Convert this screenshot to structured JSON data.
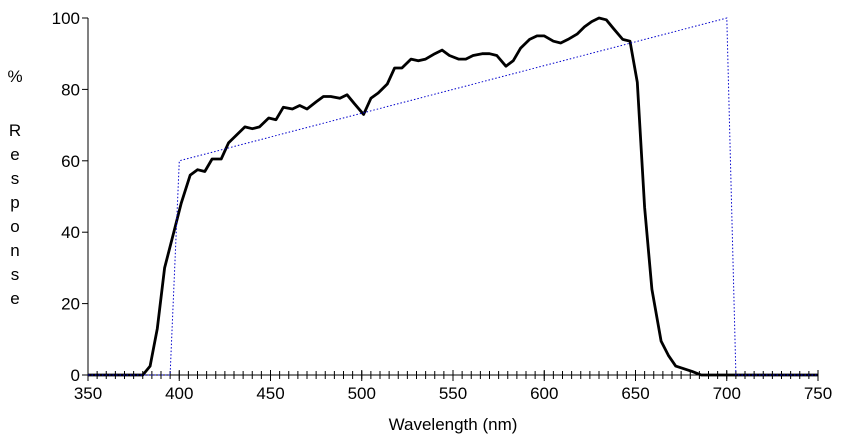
{
  "chart_data": {
    "type": "line",
    "xlabel": "Wavelength (nm)",
    "ylabel": "% Response",
    "ylabel_lines": [
      "%",
      "R",
      "e",
      "s",
      "p",
      "o",
      "n",
      "s",
      "e"
    ],
    "xlim": [
      350,
      750
    ],
    "ylim": [
      0,
      100
    ],
    "x_ticks": [
      350,
      400,
      450,
      500,
      550,
      600,
      650,
      700,
      750
    ],
    "y_ticks": [
      0,
      20,
      40,
      60,
      80,
      100
    ],
    "x_minor_step": 5,
    "grid": false,
    "legend": "none",
    "series": [
      {
        "color": "#000000",
        "style": "solid",
        "points": [
          [
            350,
            0
          ],
          [
            380,
            0
          ],
          [
            384,
            2.5
          ],
          [
            388,
            13
          ],
          [
            392,
            30
          ],
          [
            397,
            40
          ],
          [
            401,
            48
          ],
          [
            406,
            56
          ],
          [
            410,
            57.5
          ],
          [
            414,
            57
          ],
          [
            418,
            60.5
          ],
          [
            423,
            60.5
          ],
          [
            427,
            65
          ],
          [
            431,
            67
          ],
          [
            436,
            69.5
          ],
          [
            440,
            69
          ],
          [
            444,
            69.5
          ],
          [
            449,
            72
          ],
          [
            453,
            71.5
          ],
          [
            457,
            75
          ],
          [
            462,
            74.5
          ],
          [
            466,
            75.5
          ],
          [
            470,
            74.5
          ],
          [
            475,
            76.5
          ],
          [
            479,
            78
          ],
          [
            483,
            78
          ],
          [
            488,
            77.5
          ],
          [
            492,
            78.5
          ],
          [
            496,
            76
          ],
          [
            501,
            73
          ],
          [
            505,
            77.5
          ],
          [
            509,
            79
          ],
          [
            514,
            81.5
          ],
          [
            518,
            86
          ],
          [
            522,
            86
          ],
          [
            527,
            88.5
          ],
          [
            531,
            88
          ],
          [
            535,
            88.5
          ],
          [
            540,
            90
          ],
          [
            544,
            91
          ],
          [
            548,
            89.5
          ],
          [
            553,
            88.5
          ],
          [
            557,
            88.5
          ],
          [
            561,
            89.5
          ],
          [
            566,
            90
          ],
          [
            570,
            90
          ],
          [
            574,
            89.5
          ],
          [
            579,
            86.5
          ],
          [
            583,
            88
          ],
          [
            587,
            91.5
          ],
          [
            592,
            94
          ],
          [
            596,
            95
          ],
          [
            600,
            95
          ],
          [
            605,
            93.5
          ],
          [
            609,
            93
          ],
          [
            613,
            94
          ],
          [
            618,
            95.5
          ],
          [
            622,
            97.5
          ],
          [
            626,
            99
          ],
          [
            630,
            100
          ],
          [
            634,
            99.5
          ],
          [
            638,
            97
          ],
          [
            643,
            94
          ],
          [
            647,
            93.5
          ],
          [
            651,
            82
          ],
          [
            655,
            47
          ],
          [
            659,
            24
          ],
          [
            664,
            9.5
          ],
          [
            668,
            5.5
          ],
          [
            672,
            2.5
          ],
          [
            681,
            1
          ],
          [
            686,
            0
          ],
          [
            750,
            0
          ]
        ]
      },
      {
        "color": "#0000cc",
        "style": "dotted",
        "points": [
          [
            350,
            0
          ],
          [
            395,
            0
          ],
          [
            400,
            60
          ],
          [
            700,
            100
          ],
          [
            705,
            0
          ],
          [
            750,
            0
          ]
        ]
      }
    ]
  }
}
